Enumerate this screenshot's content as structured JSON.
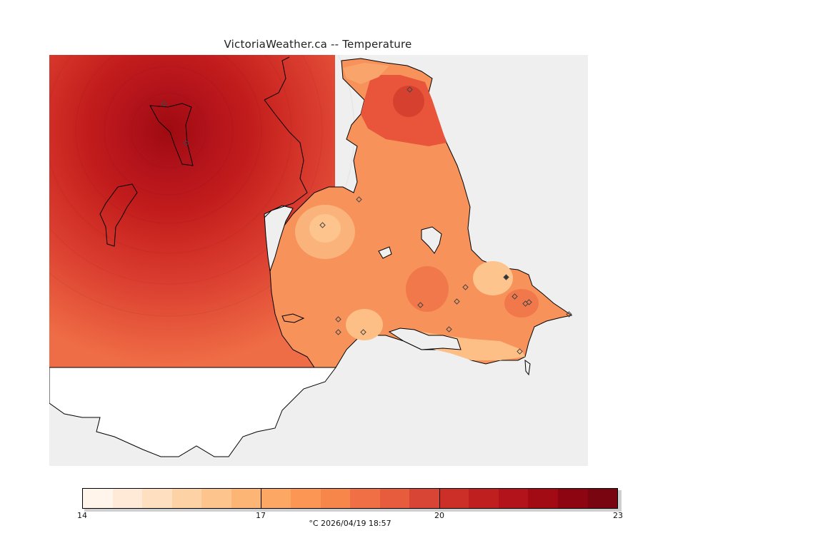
{
  "title": "VictoriaWeather.ca -- Temperature",
  "colorbar": {
    "min": 14,
    "max": 23,
    "tick_labels": [
      "14",
      "17",
      "20",
      "23"
    ],
    "colors": [
      "#fff5eb",
      "#feead6",
      "#fee0c1",
      "#fdd2a5",
      "#fdc48d",
      "#fdb576",
      "#fda764",
      "#fb9655",
      "#f7864a",
      "#f16f44",
      "#e65c3d",
      "#d94535",
      "#cc2f28",
      "#bf1f1f",
      "#b3131b",
      "#a20a14",
      "#8c0510",
      "#780510"
    ]
  },
  "caption": "°C  2026/04/19 18:57",
  "legend_unit": "°C",
  "timestamp": "2026/04/19 18:57",
  "stations_count": 18
}
